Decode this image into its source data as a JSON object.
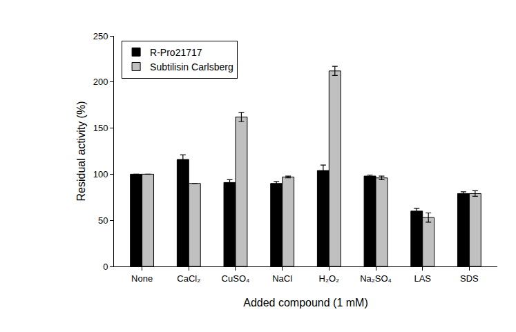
{
  "chart_data": {
    "type": "bar",
    "x_label": "Added compound (1 mM)",
    "y_label": "Residual activity (%)",
    "categories": [
      "None",
      "CaCl₂",
      "CuSO₄",
      "NaCl",
      "H₂O₂",
      "Na₂SO₄",
      "LAS",
      "SDS"
    ],
    "series": [
      {
        "name": "R-Pro21717",
        "color": "#000000",
        "values": [
          100,
          116,
          91,
          90,
          104,
          98,
          60,
          79
        ],
        "errors": [
          0,
          5,
          3,
          2,
          6,
          1,
          3,
          2
        ]
      },
      {
        "name": "Subtilisin Carlsberg",
        "color": "#c0c0c0",
        "values": [
          100,
          90,
          162,
          97,
          212,
          96,
          53,
          79
        ],
        "errors": [
          0,
          0,
          5,
          1,
          5,
          2,
          5,
          3
        ]
      }
    ],
    "ylim": [
      0,
      250
    ],
    "yticks": [
      0,
      50,
      100,
      150,
      200,
      250
    ],
    "grid": false,
    "legend": "upper left"
  }
}
